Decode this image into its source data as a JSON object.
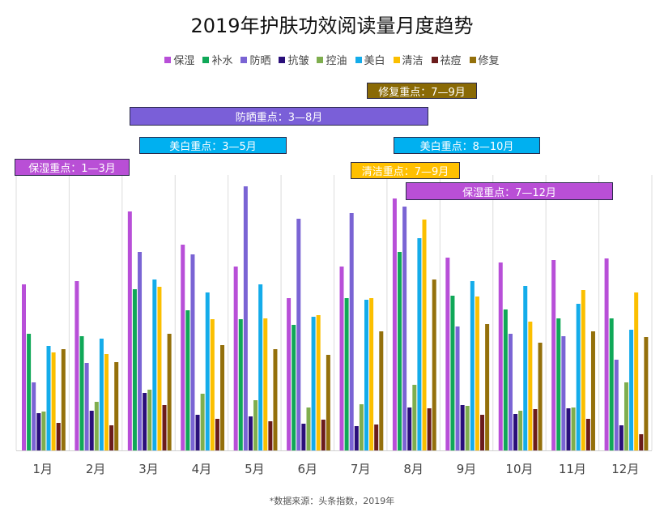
{
  "chart_data": {
    "type": "bar",
    "title": "2019年护肤功效阅读量月度趋势",
    "xlabel": "",
    "ylabel": "",
    "categories": [
      "1月",
      "2月",
      "3月",
      "4月",
      "5月",
      "6月",
      "7月",
      "8月",
      "9月",
      "10月",
      "11月",
      "12月"
    ],
    "ylim": [
      0,
      340
    ],
    "grid": "vertical category separators",
    "legend": "top",
    "series": [
      {
        "name": "保湿",
        "color": "#b84fd8",
        "values": [
          205,
          209,
          295,
          254,
          227,
          188,
          227,
          311,
          238,
          232,
          235,
          237
        ]
      },
      {
        "name": "补水",
        "color": "#10a858",
        "values": [
          144,
          141,
          199,
          173,
          162,
          155,
          188,
          245,
          191,
          174,
          163,
          163
        ]
      },
      {
        "name": "防晒",
        "color": "#7a64d4",
        "values": [
          84,
          108,
          245,
          242,
          326,
          286,
          293,
          301,
          153,
          144,
          141,
          112
        ]
      },
      {
        "name": "抗皱",
        "color": "#2a0f7a",
        "values": [
          46,
          49,
          71,
          44,
          42,
          33,
          30,
          53,
          56,
          45,
          52,
          31
        ]
      },
      {
        "name": "控油",
        "color": "#7fae4e",
        "values": [
          48,
          60,
          75,
          70,
          62,
          53,
          57,
          81,
          55,
          49,
          53,
          84
        ]
      },
      {
        "name": "美白",
        "color": "#14acea",
        "values": [
          129,
          138,
          211,
          195,
          205,
          165,
          186,
          262,
          209,
          203,
          181,
          149
        ]
      },
      {
        "name": "清洁",
        "color": "#fbbf00",
        "values": [
          121,
          119,
          202,
          162,
          163,
          167,
          188,
          285,
          190,
          159,
          198,
          195
        ]
      },
      {
        "name": "祛痘",
        "color": "#6b1c1c",
        "values": [
          34,
          31,
          56,
          39,
          36,
          38,
          32,
          52,
          44,
          51,
          39,
          20
        ]
      },
      {
        "name": "修复",
        "color": "#94700b",
        "values": [
          125,
          109,
          144,
          130,
          125,
          118,
          147,
          211,
          156,
          133,
          147,
          140
        ]
      }
    ],
    "annotations": [
      {
        "label": "修复重点：7—9月",
        "color": "#8a6a05"
      },
      {
        "label": "防晒重点：3—8月",
        "color": "#7a5fd8"
      },
      {
        "label": "美白重点：3—5月",
        "color": "#00b0f0"
      },
      {
        "label": "美白重点：8—10月",
        "color": "#00b0f0"
      },
      {
        "label": "保湿重点：1—3月",
        "color": "#b94fd6"
      },
      {
        "label": "清洁重点：7—9月",
        "color": "#ffc000"
      },
      {
        "label": "保湿重点：7—12月",
        "color": "#b94fd6"
      }
    ],
    "source": "*数据来源：头条指数，2019年"
  }
}
